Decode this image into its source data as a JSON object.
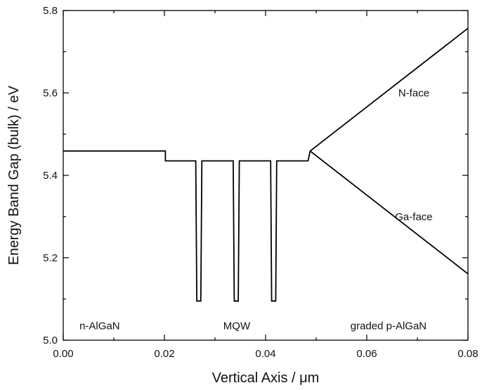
{
  "chart_data": {
    "type": "line",
    "xlabel": "Vertical Axis / μm",
    "ylabel": "Energy Band Gap (bulk) / eV",
    "xlim": [
      0.0,
      0.08
    ],
    "ylim": [
      5.0,
      5.8
    ],
    "x_ticks": [
      0.0,
      0.02,
      0.04,
      0.06,
      0.08
    ],
    "x_tick_labels": [
      "0.00",
      "0.02",
      "0.04",
      "0.06",
      "0.08"
    ],
    "y_ticks": [
      5.0,
      5.2,
      5.4,
      5.6,
      5.8
    ],
    "y_tick_labels": [
      "5.0",
      "5.2",
      "5.4",
      "5.6",
      "5.8"
    ],
    "grid": false,
    "series": [
      {
        "x": [
          0.0,
          0.0202,
          0.0202,
          0.0262,
          0.0264,
          0.0272,
          0.0274,
          0.0336,
          0.0338,
          0.0346,
          0.0348,
          0.041,
          0.0412,
          0.042,
          0.0422,
          0.0484,
          0.0488
        ],
        "y": [
          5.459,
          5.459,
          5.435,
          5.435,
          5.095,
          5.095,
          5.435,
          5.435,
          5.095,
          5.095,
          5.435,
          5.435,
          5.095,
          5.095,
          5.435,
          5.435,
          5.459
        ]
      },
      {
        "x": [
          0.0488,
          0.08
        ],
        "y": [
          5.459,
          5.757
        ]
      },
      {
        "x": [
          0.0488,
          0.08
        ],
        "y": [
          5.459,
          5.161
        ]
      }
    ],
    "annotations": [
      {
        "text": "N-face",
        "x": 0.0693,
        "y": 5.6
      },
      {
        "text": "Ga-face",
        "x": 0.0693,
        "y": 5.3
      },
      {
        "text": "n-AlGaN",
        "x": 0.0072,
        "y": 5.035
      },
      {
        "text": "MQW",
        "x": 0.0343,
        "y": 5.035
      },
      {
        "text": "graded p-AlGaN",
        "x": 0.0643,
        "y": 5.035
      }
    ]
  }
}
